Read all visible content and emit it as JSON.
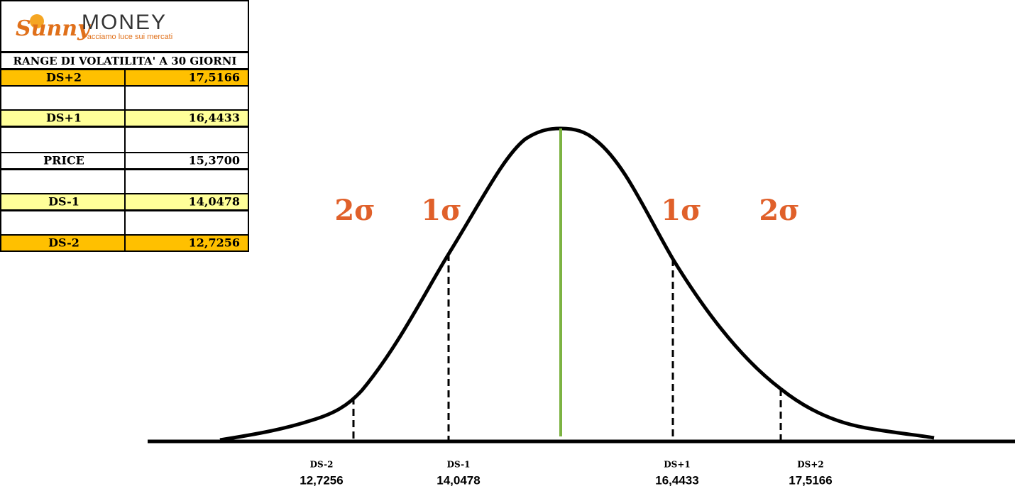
{
  "logo": {
    "brand_script": "Sunny",
    "brand": "MONEY",
    "tagline": "Facciamo luce sui mercati"
  },
  "table": {
    "title": "RANGE DI VOLATILITA' A 30 GIORNI",
    "rows": [
      [
        "DS+2",
        "17,5166"
      ],
      [
        "DS+1",
        "16,4433"
      ],
      [
        "PRICE",
        "15,3700"
      ],
      [
        "DS-1",
        "14,0478"
      ],
      [
        "DS-2",
        "12,7256"
      ]
    ]
  },
  "diagram": {
    "sigma_labels": [
      "2σ",
      "1σ",
      "1σ",
      "2σ"
    ],
    "markers": [
      {
        "label": "DS-2",
        "value": "12,7256"
      },
      {
        "label": "DS-1",
        "value": "14,0478"
      },
      {
        "label": "DS+1",
        "value": "16,4433"
      },
      {
        "label": "DS+2",
        "value": "17,5166"
      }
    ]
  }
}
